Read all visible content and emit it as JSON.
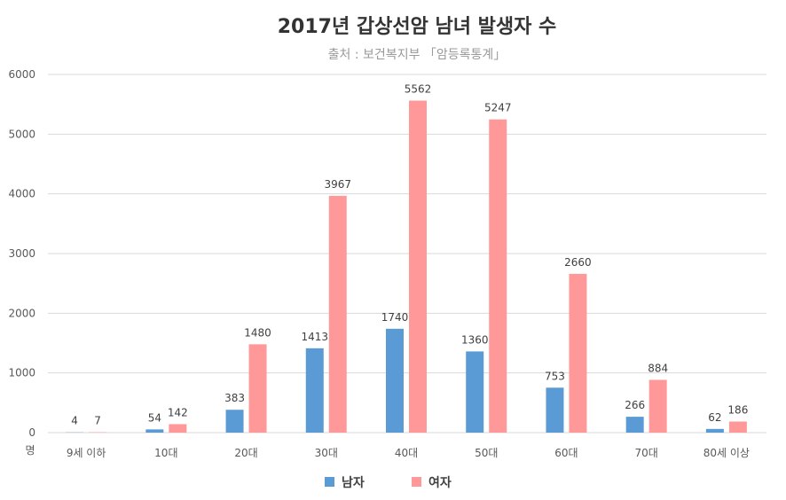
{
  "chart_data": {
    "type": "bar",
    "title": "2017년 갑상선암 남녀 발생자 수",
    "subtitle": "출처 : 보건복지부 「암등록통계」",
    "ylabel": "명",
    "xlabel": "",
    "ylim": [
      0,
      6000
    ],
    "yticks": [
      0,
      1000,
      2000,
      3000,
      4000,
      5000,
      6000
    ],
    "grid": true,
    "legend_position": "bottom",
    "categories": [
      "9세 이하",
      "10대",
      "20대",
      "30대",
      "40대",
      "50대",
      "60대",
      "70대",
      "80세 이상"
    ],
    "series": [
      {
        "name": "남자",
        "color": "#5b9bd5",
        "values": [
          4,
          54,
          383,
          1413,
          1740,
          1360,
          753,
          266,
          62
        ]
      },
      {
        "name": "여자",
        "color": "#ff9999",
        "values": [
          7,
          142,
          1480,
          3967,
          5562,
          5247,
          2660,
          884,
          186
        ]
      }
    ]
  }
}
